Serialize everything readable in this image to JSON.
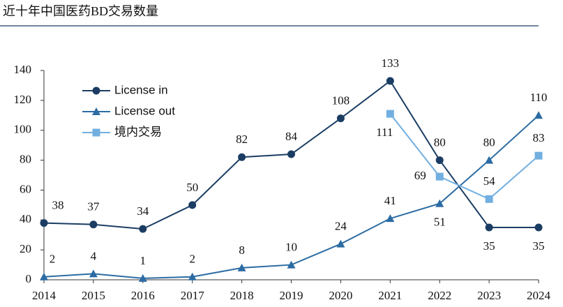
{
  "chart_data": {
    "type": "line",
    "title": "近十年中国医药BD交易数量",
    "categories": [
      "2014",
      "2015",
      "2016",
      "2017",
      "2018",
      "2019",
      "2020",
      "2021",
      "2022",
      "2023",
      "2024"
    ],
    "series": [
      {
        "name": "License in",
        "color": "#1b3d63",
        "marker": "circle",
        "values": [
          38,
          37,
          34,
          50,
          82,
          84,
          108,
          133,
          80,
          35,
          35
        ]
      },
      {
        "name": "License out",
        "color": "#2c6ca3",
        "marker": "triangle",
        "values": [
          2,
          4,
          1,
          2,
          8,
          10,
          24,
          41,
          51,
          80,
          110
        ]
      },
      {
        "name": "境内交易",
        "color": "#72afe0",
        "marker": "square",
        "values": [
          null,
          null,
          null,
          null,
          null,
          null,
          null,
          111,
          69,
          54,
          83
        ]
      }
    ],
    "ylim": [
      0,
      140
    ],
    "yticks": [
      0,
      20,
      40,
      60,
      80,
      100,
      120,
      140
    ],
    "legend": "upper left"
  }
}
